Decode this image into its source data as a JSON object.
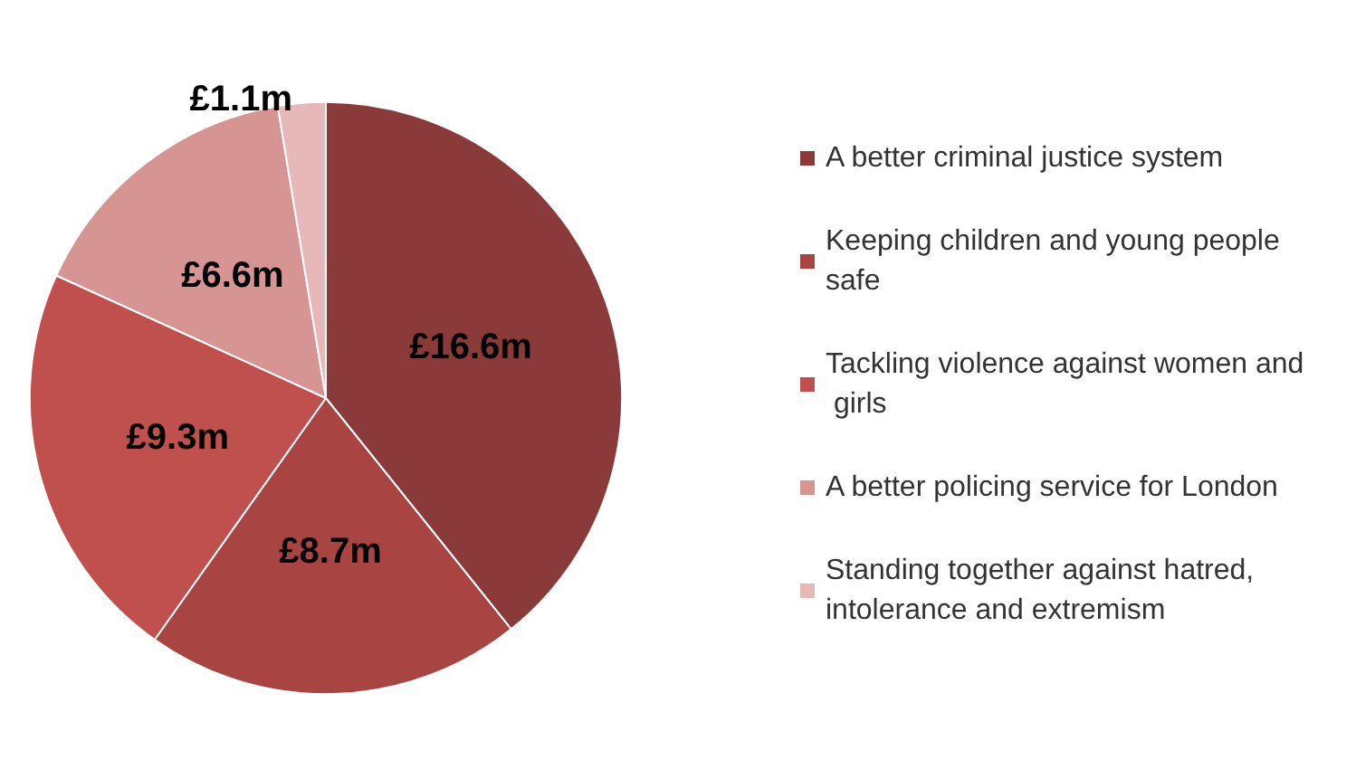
{
  "chart_data": {
    "type": "pie",
    "categories": [
      "A better criminal justice system",
      "Keeping children and young people safe",
      "Tackling violence against women and girls",
      "A better policing service for London",
      "Standing together against hatred, intolerance and extremism"
    ],
    "values": [
      16.6,
      8.7,
      9.3,
      6.6,
      1.1
    ],
    "value_labels": [
      "£16.6m",
      "£8.7m",
      "£9.3m",
      "£6.6m",
      "£1.1m"
    ],
    "colors": [
      "#8b3a3a",
      "#a84442",
      "#c0504d",
      "#d69493",
      "#e6b9b8"
    ],
    "legend": "right"
  }
}
